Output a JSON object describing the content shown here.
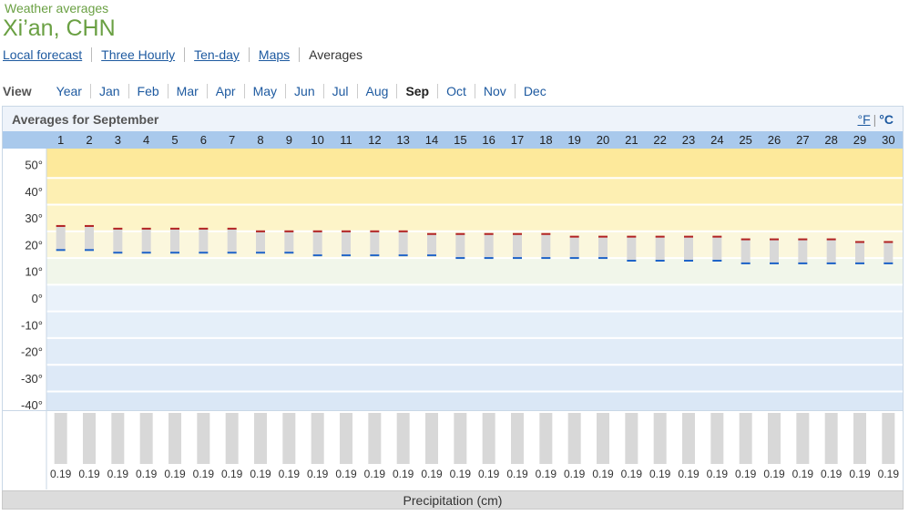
{
  "header": {
    "site_label": "Weather averages",
    "title": "Xi’an, CHN"
  },
  "tabs": [
    {
      "label": "Local forecast",
      "active": false
    },
    {
      "label": "Three Hourly",
      "active": false
    },
    {
      "label": "Ten-day",
      "active": false
    },
    {
      "label": "Maps",
      "active": false
    },
    {
      "label": "Averages",
      "active": true
    }
  ],
  "view": {
    "label": "View",
    "options": [
      "Year",
      "Jan",
      "Feb",
      "Mar",
      "Apr",
      "May",
      "Jun",
      "Jul",
      "Aug",
      "Sep",
      "Oct",
      "Nov",
      "Dec"
    ],
    "selected": "Sep"
  },
  "panel": {
    "title": "Averages for September",
    "unit_f": "°F",
    "unit_sep": "|",
    "unit_c": "°C",
    "selected_unit": "°C"
  },
  "footer": {
    "precip_label": "Precipitation (cm)"
  },
  "colors": {
    "band_top": "#fde99b",
    "band_cold": "#dde9f7",
    "high_marker": "#b22222",
    "low_marker": "#1f64c8",
    "range_bar": "#d8d8d8",
    "header_row": "#a9c9ec",
    "accent_green": "#6aa043",
    "link_blue": "#1e5aa0"
  },
  "chart_data": {
    "type": "bar",
    "days": [
      1,
      2,
      3,
      4,
      5,
      6,
      7,
      8,
      9,
      10,
      11,
      12,
      13,
      14,
      15,
      16,
      17,
      18,
      19,
      20,
      21,
      22,
      23,
      24,
      25,
      26,
      27,
      28,
      29,
      30
    ],
    "series": [
      {
        "name": "High",
        "values": [
          27,
          27,
          26,
          26,
          26,
          26,
          26,
          25,
          25,
          25,
          25,
          25,
          25,
          24,
          24,
          24,
          24,
          24,
          23,
          23,
          23,
          23,
          23,
          23,
          22,
          22,
          22,
          22,
          21,
          21
        ]
      },
      {
        "name": "Low",
        "values": [
          18,
          18,
          17,
          17,
          17,
          17,
          17,
          17,
          17,
          16,
          16,
          16,
          16,
          16,
          15,
          15,
          15,
          15,
          15,
          15,
          14,
          14,
          14,
          14,
          13,
          13,
          13,
          13,
          13,
          13
        ]
      }
    ],
    "y_ticks": [
      50,
      40,
      30,
      20,
      10,
      0,
      -10,
      -20,
      -30,
      -40
    ],
    "y_unit": "°",
    "ylim": [
      -42,
      56
    ],
    "precipitation": {
      "unit": "cm",
      "values": [
        0.19,
        0.19,
        0.19,
        0.19,
        0.19,
        0.19,
        0.19,
        0.19,
        0.19,
        0.19,
        0.19,
        0.19,
        0.19,
        0.19,
        0.19,
        0.19,
        0.19,
        0.19,
        0.19,
        0.19,
        0.19,
        0.19,
        0.19,
        0.19,
        0.19,
        0.19,
        0.19,
        0.19,
        0.19,
        0.19
      ],
      "value_labels": [
        "0.19",
        "0.19",
        "0.19",
        "0.19",
        "0.19",
        "0.19",
        "0.19",
        "0.19",
        "0.19",
        "0.19",
        "0.19",
        "0.19",
        "0.19",
        "0.19",
        "0.19",
        "0.19",
        "0.19",
        "0.19",
        "0.19",
        "0.19",
        "0.19",
        "0.19",
        "0.19",
        "0.19",
        "0.19",
        "0.19",
        "0.19",
        "0.19",
        "0.19",
        "0.19"
      ]
    },
    "grid": true
  }
}
